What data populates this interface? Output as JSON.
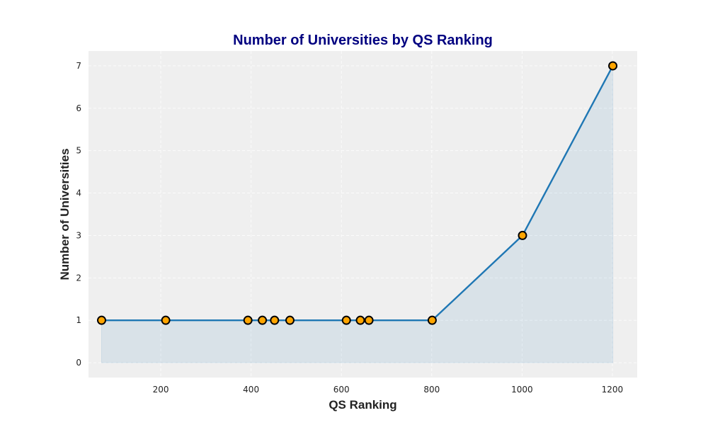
{
  "chart_data": {
    "type": "area",
    "title": "Number of Universities by QS Ranking",
    "xlabel": "QS Ranking",
    "ylabel": "Number of Universities",
    "xlim": [
      40,
      1255
    ],
    "ylim": [
      -0.35,
      7.35
    ],
    "xticks": [
      200,
      400,
      600,
      800,
      1000,
      1200
    ],
    "yticks": [
      0,
      1,
      2,
      3,
      4,
      5,
      6,
      7
    ],
    "grid": true,
    "legend": "none",
    "series": [
      {
        "x": [
          69,
          211,
          393,
          425,
          452,
          486,
          611,
          642,
          661,
          801,
          1001,
          1201
        ],
        "y": [
          1,
          1,
          1,
          1,
          1,
          1,
          1,
          1,
          1,
          1,
          3,
          7
        ]
      }
    ]
  },
  "colors": {
    "title": "#000080",
    "line": "#1f77b4",
    "fill": "#1f77b4",
    "marker_face": "#ffa500",
    "marker_edge": "#000000",
    "plot_background": "#efefef"
  }
}
